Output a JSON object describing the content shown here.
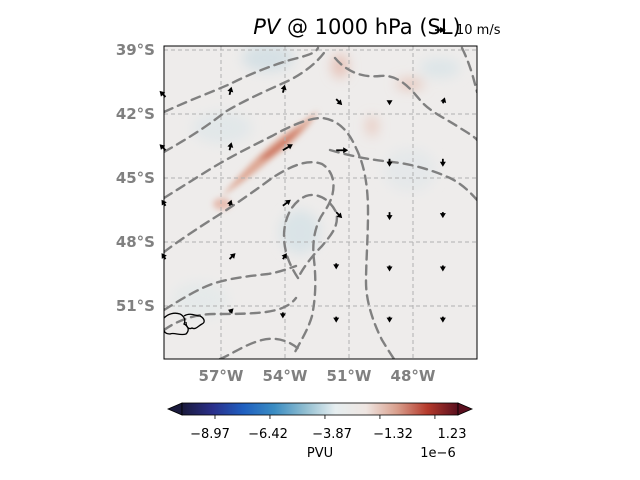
{
  "title": {
    "variable": "PV",
    "rest": " @ 1000 hPa (SL)"
  },
  "quiver_key": {
    "label": "10 m/s"
  },
  "colorbar": {
    "label": "PVU",
    "exponent": "1e−6",
    "tick_labels": [
      "−8.97",
      "−6.42",
      "−3.87",
      "−1.32",
      "1.23"
    ],
    "tick_values": [
      -8.97,
      -6.42,
      -3.87,
      -1.32,
      1.23
    ],
    "vmin": -10.5,
    "vmax": 2.3,
    "extend": "both",
    "colormap_stops": [
      "#1a1a3c",
      "#2a2f8a",
      "#1f5fc0",
      "#3a8cc2",
      "#8fbdd0",
      "#e6eef0",
      "#efe6e2",
      "#d9a08e",
      "#b53a2c",
      "#5a0f1e"
    ]
  },
  "chart_data": {
    "type": "heatmap",
    "title": "PV @ 1000 hPa (SL)",
    "units": "PVU",
    "scale": "1e-6",
    "xlabel": "",
    "ylabel": "",
    "x_ticks": [
      "57°W",
      "54°W",
      "51°W",
      "48°W"
    ],
    "x_tick_values": [
      -57,
      -54,
      -51,
      -48
    ],
    "y_ticks": [
      "39°S",
      "42°S",
      "45°S",
      "48°S",
      "51°S"
    ],
    "y_tick_values": [
      -39,
      -42,
      -45,
      -48,
      -51
    ],
    "xlim": [
      -59.7,
      -45.1
    ],
    "ylim": [
      -53.5,
      -38.8
    ],
    "grid": true,
    "colorbar_range": [
      -10.5,
      2.3
    ],
    "overlays": [
      "PV shading",
      "dashed gray contours",
      "wind vectors",
      "coastline"
    ],
    "wind_vectors": [
      {
        "lon": -59.6,
        "lat": -41.2,
        "u": -3,
        "v": 3
      },
      {
        "lon": -56.6,
        "lat": -41.1,
        "u": 1,
        "v": 4
      },
      {
        "lon": -54.1,
        "lat": -41.0,
        "u": 1,
        "v": 4
      },
      {
        "lon": -51.6,
        "lat": -41.3,
        "u": 3,
        "v": -3
      },
      {
        "lon": -49.1,
        "lat": -41.4,
        "u": 0,
        "v": -2
      },
      {
        "lon": -46.6,
        "lat": -41.5,
        "u": 1,
        "v": 3
      },
      {
        "lon": -59.6,
        "lat": -43.7,
        "u": -3,
        "v": 3
      },
      {
        "lon": -56.6,
        "lat": -43.7,
        "u": 1,
        "v": 4
      },
      {
        "lon": -54.1,
        "lat": -43.7,
        "u": 5,
        "v": 3
      },
      {
        "lon": -51.6,
        "lat": -43.7,
        "u": 6,
        "v": 0
      },
      {
        "lon": -49.1,
        "lat": -44.1,
        "u": 0,
        "v": -4
      },
      {
        "lon": -46.6,
        "lat": -44.1,
        "u": 0,
        "v": -4
      },
      {
        "lon": -59.6,
        "lat": -46.3,
        "u": -2,
        "v": 3
      },
      {
        "lon": -56.6,
        "lat": -46.3,
        "u": 1,
        "v": 3
      },
      {
        "lon": -54.1,
        "lat": -46.3,
        "u": 4,
        "v": 3
      },
      {
        "lon": -51.6,
        "lat": -46.6,
        "u": 3,
        "v": -3
      },
      {
        "lon": -49.1,
        "lat": -46.6,
        "u": 0,
        "v": -4
      },
      {
        "lon": -46.6,
        "lat": -46.6,
        "u": 0,
        "v": -3
      },
      {
        "lon": -59.6,
        "lat": -48.8,
        "u": -2,
        "v": 3
      },
      {
        "lon": -56.6,
        "lat": -48.8,
        "u": 3,
        "v": 3
      },
      {
        "lon": -54.1,
        "lat": -48.8,
        "u": 2,
        "v": 3
      },
      {
        "lon": -51.6,
        "lat": -49.0,
        "u": 0,
        "v": -3
      },
      {
        "lon": -49.1,
        "lat": -49.1,
        "u": 0,
        "v": -3
      },
      {
        "lon": -46.6,
        "lat": -49.1,
        "u": 0,
        "v": -3
      },
      {
        "lon": -56.6,
        "lat": -51.3,
        "u": 2,
        "v": 2
      },
      {
        "lon": -54.1,
        "lat": -51.3,
        "u": 0,
        "v": -3
      },
      {
        "lon": -51.6,
        "lat": -51.5,
        "u": 0,
        "v": -3
      },
      {
        "lon": -49.1,
        "lat": -51.5,
        "u": 0,
        "v": -3
      },
      {
        "lon": -46.6,
        "lat": -51.5,
        "u": 0,
        "v": -3
      }
    ]
  }
}
